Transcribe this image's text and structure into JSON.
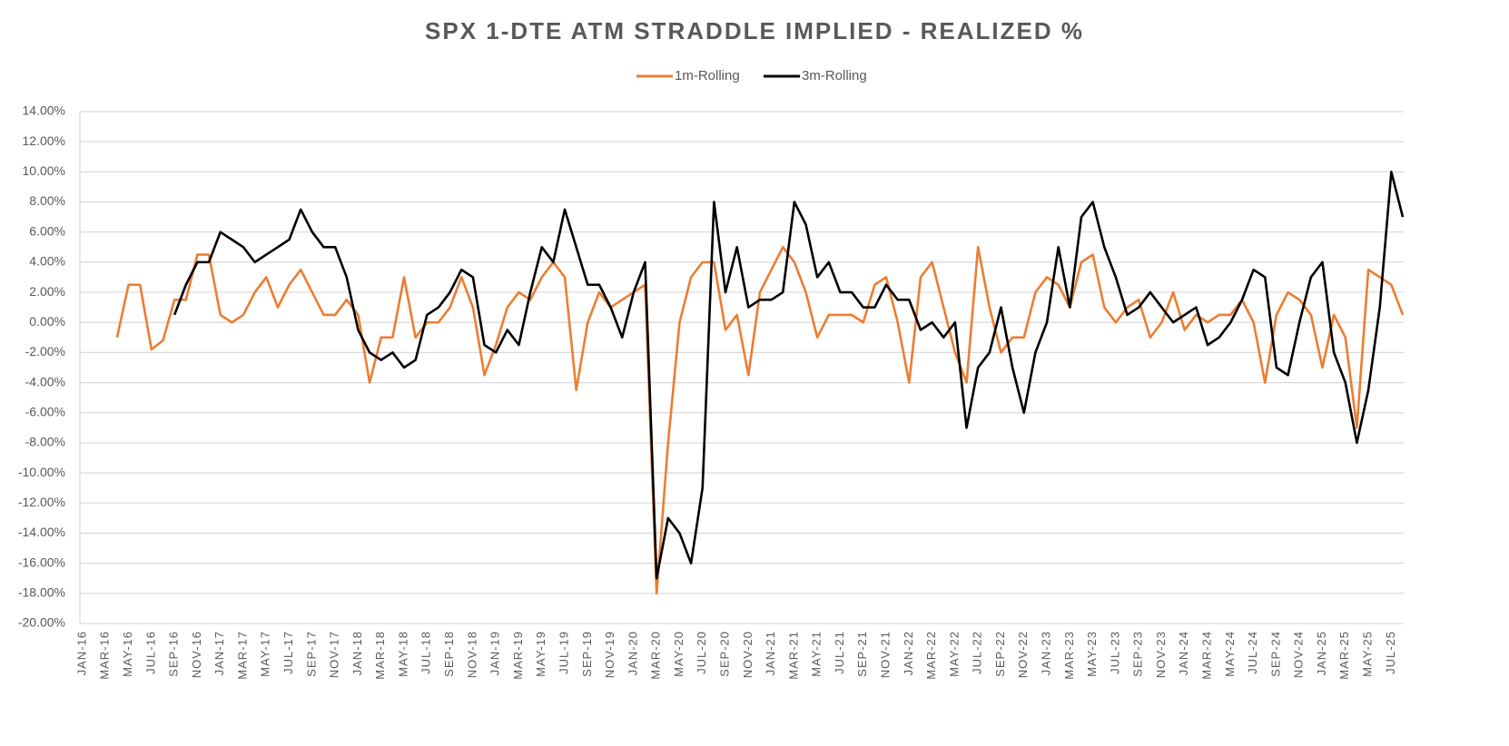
{
  "chart_data": {
    "type": "line",
    "title": "SPX 1-DTE ATM STRADDLE IMPLIED - REALIZED %",
    "legend": "top",
    "grid": true,
    "categories": [
      "JAN-16",
      null,
      "MAR-16",
      null,
      "MAY-16",
      null,
      "JUL-16",
      null,
      "SEP-16",
      null,
      "NOV-16",
      null,
      "JAN-17",
      null,
      "MAR-17",
      null,
      "MAY-17",
      null,
      "JUL-17",
      null,
      "SEP-17",
      null,
      "NOV-17",
      null,
      "JAN-18",
      null,
      "MAR-18",
      null,
      "MAY-18",
      null,
      "JUL-18",
      null,
      "SEP-18",
      null,
      "NOV-18",
      null,
      "JAN-19",
      null,
      "MAR-19",
      null,
      "MAY-19",
      null,
      "JUL-19",
      null,
      "SEP-19",
      null,
      "NOV-19",
      null,
      "JAN-20",
      null,
      "MAR-20",
      null,
      "MAY-20",
      null,
      "JUL-20",
      null,
      "SEP-20",
      null,
      "NOV-20",
      null,
      "JAN-21",
      null,
      "MAR-21",
      null,
      "MAY-21",
      null,
      "JUL-21",
      null,
      "SEP-21",
      null,
      "NOV-21",
      null,
      "JAN-22",
      null,
      "MAR-22",
      null,
      "MAY-22",
      null,
      "JUL-22",
      null,
      "SEP-22",
      null,
      "NOV-22",
      null,
      "JAN-23",
      null,
      "MAR-23",
      null,
      "MAY-23",
      null,
      "JUL-23",
      null,
      "SEP-23",
      null,
      "NOV-23",
      null,
      "JAN-24",
      null,
      "MAR-24",
      null,
      "MAY-24",
      null,
      "JUL-24",
      null,
      "SEP-24",
      null,
      "NOV-24",
      null,
      "JAN-25",
      null,
      "MAR-25",
      null,
      "MAY-25",
      null,
      "JUL-25",
      null
    ],
    "series": [
      {
        "name": "1m-Rolling",
        "color": "#ed7d31",
        "values": [
          null,
          null,
          null,
          -1,
          2.5,
          2.5,
          -1.8,
          -1.2,
          1.5,
          1.5,
          4.5,
          4.5,
          0.5,
          0,
          0.5,
          2,
          3,
          1,
          2.5,
          3.5,
          2,
          0.5,
          0.5,
          1.5,
          0.5,
          -4,
          -1,
          -1,
          3,
          -1,
          0,
          0,
          1,
          3,
          1,
          -3.5,
          -1.5,
          1,
          2,
          1.5,
          3,
          4,
          3,
          -4.5,
          0,
          2,
          1,
          1.5,
          2,
          2.5,
          -18,
          -8,
          0,
          3,
          4,
          4,
          -0.5,
          0.5,
          -3.5,
          2,
          3.5,
          5,
          4,
          2,
          -1,
          0.5,
          0.5,
          0.5,
          0,
          2.5,
          3,
          0,
          -4,
          3,
          4,
          1,
          -2,
          -4,
          5,
          1,
          -2,
          -1,
          -1,
          2,
          3,
          2.5,
          1,
          4,
          4.5,
          1,
          0,
          1,
          1.5,
          -1,
          0,
          2,
          -0.5,
          0.5,
          0,
          0.5,
          0.5,
          1.5,
          0,
          -4,
          0.5,
          2,
          1.5,
          0.5,
          -3,
          0.5,
          -1,
          -7,
          3.5,
          3,
          2.5,
          0.5
        ]
      },
      {
        "name": "3m-Rolling",
        "color": "#000000",
        "values": [
          null,
          null,
          null,
          null,
          null,
          null,
          null,
          null,
          0.5,
          2.5,
          4,
          4,
          6,
          5.5,
          5,
          4,
          4.5,
          5,
          5.5,
          7.5,
          6,
          5,
          5,
          3,
          -0.5,
          -2,
          -2.5,
          -2,
          -3,
          -2.5,
          0.5,
          1,
          2,
          3.5,
          3,
          -1.5,
          -2,
          -0.5,
          -1.5,
          2,
          5,
          4,
          7.5,
          5,
          2.5,
          2.5,
          1,
          -1,
          2,
          4,
          -17,
          -13,
          -14,
          -16,
          -11,
          8,
          2,
          5,
          1,
          1.5,
          1.5,
          2,
          8,
          6.5,
          3,
          4,
          2,
          2,
          1,
          1,
          2.5,
          1.5,
          1.5,
          -0.5,
          0,
          -1,
          0,
          -7,
          -3,
          -2,
          1,
          -3,
          -6,
          -2,
          0,
          5,
          1,
          7,
          8,
          5,
          3,
          0.5,
          1,
          2,
          1,
          0,
          0.5,
          1,
          -1.5,
          -1,
          0,
          1.5,
          3.5,
          3,
          -3,
          -3.5,
          0,
          3,
          4,
          -2,
          -4,
          -8,
          -4.5,
          1,
          10,
          7
        ]
      }
    ],
    "ylim": [
      -20,
      14
    ],
    "yticks": [
      {
        "value": -20,
        "label": "-20.00%"
      },
      {
        "value": -18,
        "label": "-18.00%"
      },
      {
        "value": -16,
        "label": "-16.00%"
      },
      {
        "value": -14,
        "label": "-14.00%"
      },
      {
        "value": -12,
        "label": "-12.00%"
      },
      {
        "value": -10,
        "label": "-10.00%"
      },
      {
        "value": -8,
        "label": "-8.00%"
      },
      {
        "value": -6,
        "label": "-6.00%"
      },
      {
        "value": -4,
        "label": "-4.00%"
      },
      {
        "value": -2,
        "label": "-2.00%"
      },
      {
        "value": 0,
        "label": "0.00%"
      },
      {
        "value": 2,
        "label": "2.00%"
      },
      {
        "value": 4,
        "label": "4.00%"
      },
      {
        "value": 6,
        "label": "6.00%"
      },
      {
        "value": 8,
        "label": "8.00%"
      },
      {
        "value": 10,
        "label": "10.00%"
      },
      {
        "value": 12,
        "label": "12.00%"
      },
      {
        "value": 14,
        "label": "14.00%"
      }
    ]
  }
}
